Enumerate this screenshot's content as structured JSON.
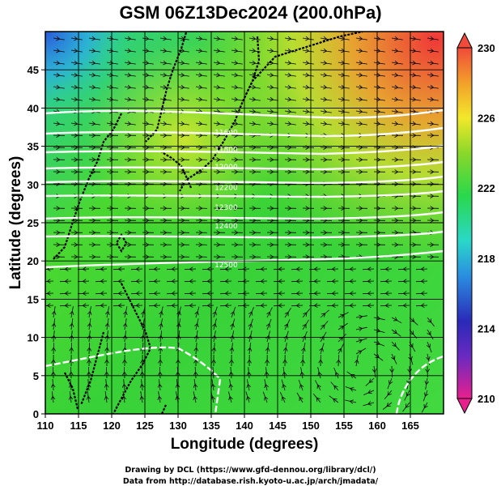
{
  "title": "GSM 06Z13Dec2024 (200.0hPa)",
  "credits": {
    "line1": "Drawing by DCL (https://www.gfd-dennou.org/library/dcl/)",
    "line2": "Data from http://database.rish.kyoto-u.ac.jp/arch/jmadata/"
  },
  "chart_data": {
    "type": "heatmap",
    "title": "GSM 06Z13Dec2024 (200.0hPa)",
    "xlabel": "Longitude (degrees)",
    "ylabel": "Latitude  (degrees)",
    "xlim": [
      110,
      170
    ],
    "ylim": [
      0,
      50
    ],
    "x_ticks": [
      110,
      115,
      120,
      125,
      130,
      135,
      140,
      145,
      150,
      155,
      160,
      165
    ],
    "y_ticks": [
      0,
      5,
      10,
      15,
      20,
      25,
      30,
      35,
      40,
      45
    ],
    "colorbar": {
      "min": 210,
      "max": 230,
      "tick_labels": [
        "230",
        "226",
        "222",
        "218",
        "214",
        "210"
      ],
      "colors": [
        "#e8208e",
        "#2a2ab8",
        "#2a8ee0",
        "#2ad8c8",
        "#2ad84a",
        "#8ad82a",
        "#f2e82a",
        "#f2a02a",
        "#f04a3a"
      ]
    },
    "contour_labels": [
      {
        "text": "11600",
        "lat": 36.8
      },
      {
        "text": "11800",
        "lat": 34.6
      },
      {
        "text": "12000",
        "lat": 32.3
      },
      {
        "text": "12200",
        "lat": 29.6
      },
      {
        "text": "12300",
        "lat": 27.0
      },
      {
        "text": "12400",
        "lat": 24.6
      },
      {
        "text": "12500",
        "lat": 19.5
      }
    ],
    "contour_label_lon": 135.5,
    "grid": true
  }
}
